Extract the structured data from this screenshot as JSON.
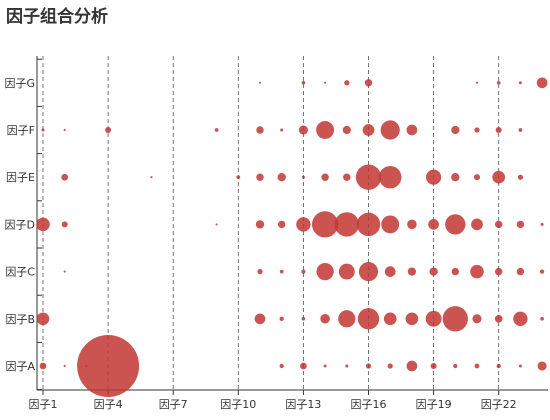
{
  "title": "因子组合分析",
  "chart_data": {
    "type": "scatter",
    "title": "因子组合分析",
    "x_categories": [
      "因子1",
      "因子2",
      "因子3",
      "因子4",
      "因子5",
      "因子6",
      "因子7",
      "因子8",
      "因子9",
      "因子10",
      "因子11",
      "因子12",
      "因子13",
      "因子14",
      "因子15",
      "因子16",
      "因子17",
      "因子18",
      "因子19",
      "因子20",
      "因子21",
      "因子22",
      "因子23",
      "因子24"
    ],
    "x_tick_labels": [
      "因子1",
      "因子4",
      "因子7",
      "因子10",
      "因子13",
      "因子16",
      "因子19",
      "因子22"
    ],
    "y_categories": [
      "因子A",
      "因子B",
      "因子C",
      "因子D",
      "因子E",
      "因子F",
      "因子G"
    ],
    "color": "#c23531",
    "grid": "dashed vertical lines at labeled x ticks",
    "points": [
      {
        "x": "因子1",
        "y": "因子A",
        "v": 1
      },
      {
        "x": "因子2",
        "y": "因子A",
        "v": 0.1
      },
      {
        "x": "因子3",
        "y": "因子A",
        "v": 0.1
      },
      {
        "x": "因子4",
        "y": "因子A",
        "v": 84
      },
      {
        "x": "因子12",
        "y": "因子A",
        "v": 0.4
      },
      {
        "x": "因子13",
        "y": "因子A",
        "v": 1
      },
      {
        "x": "因子14",
        "y": "因子A",
        "v": 0.2
      },
      {
        "x": "因子15",
        "y": "因子A",
        "v": 0.2
      },
      {
        "x": "因子16",
        "y": "因子A",
        "v": 0.6
      },
      {
        "x": "因子17",
        "y": "因子A",
        "v": 0.6
      },
      {
        "x": "因子18",
        "y": "因子A",
        "v": 2.5
      },
      {
        "x": "因子19",
        "y": "因子A",
        "v": 0.8
      },
      {
        "x": "因子20",
        "y": "因子A",
        "v": 0.4
      },
      {
        "x": "因子21",
        "y": "因子A",
        "v": 0.5
      },
      {
        "x": "因子22",
        "y": "因子A",
        "v": 0.4
      },
      {
        "x": "因子23",
        "y": "因子A",
        "v": 0.2
      },
      {
        "x": "因子24",
        "y": "因子A",
        "v": 1.8
      },
      {
        "x": "因子1",
        "y": "因子B",
        "v": 3.5
      },
      {
        "x": "因子11",
        "y": "因子B",
        "v": 2.5
      },
      {
        "x": "因子12",
        "y": "因子B",
        "v": 0.4
      },
      {
        "x": "因子13",
        "y": "因子B",
        "v": 0.3
      },
      {
        "x": "因子14",
        "y": "因子B",
        "v": 2
      },
      {
        "x": "因子15",
        "y": "因子B",
        "v": 6.5
      },
      {
        "x": "因子16",
        "y": "因子B",
        "v": 10
      },
      {
        "x": "因子17",
        "y": "因子B",
        "v": 3.5
      },
      {
        "x": "因子18",
        "y": "因子B",
        "v": 3.5
      },
      {
        "x": "因子19",
        "y": "因子B",
        "v": 5.5
      },
      {
        "x": "因子20",
        "y": "因子B",
        "v": 14
      },
      {
        "x": "因子21",
        "y": "因子B",
        "v": 1.8
      },
      {
        "x": "因子22",
        "y": "因子B",
        "v": 1.3
      },
      {
        "x": "因子23",
        "y": "因子B",
        "v": 4.5
      },
      {
        "x": "因子24",
        "y": "因子B",
        "v": 0.3
      },
      {
        "x": "因子2",
        "y": "因子C",
        "v": 0.1
      },
      {
        "x": "因子11",
        "y": "因子C",
        "v": 0.6
      },
      {
        "x": "因子12",
        "y": "因子C",
        "v": 0.3
      },
      {
        "x": "因子13",
        "y": "因子C",
        "v": 0.4
      },
      {
        "x": "因子14",
        "y": "因子C",
        "v": 6.5
      },
      {
        "x": "因子15",
        "y": "因子C",
        "v": 5.5
      },
      {
        "x": "因子16",
        "y": "因子C",
        "v": 8
      },
      {
        "x": "因子17",
        "y": "因子C",
        "v": 2.5
      },
      {
        "x": "因子18",
        "y": "因子C",
        "v": 1.5
      },
      {
        "x": "因子19",
        "y": "因子C",
        "v": 1.5
      },
      {
        "x": "因子20",
        "y": "因子C",
        "v": 1.2
      },
      {
        "x": "因子21",
        "y": "因子C",
        "v": 4
      },
      {
        "x": "因子22",
        "y": "因子C",
        "v": 1.2
      },
      {
        "x": "因子23",
        "y": "因子C",
        "v": 1.2
      },
      {
        "x": "因子24",
        "y": "因子C",
        "v": 0.4
      },
      {
        "x": "因子1",
        "y": "因子D",
        "v": 4
      },
      {
        "x": "因子2",
        "y": "因子D",
        "v": 0.8
      },
      {
        "x": "因子9",
        "y": "因子D",
        "v": 0.1
      },
      {
        "x": "因子11",
        "y": "因子D",
        "v": 1.5
      },
      {
        "x": "因子12",
        "y": "因子D",
        "v": 1.2
      },
      {
        "x": "因子13",
        "y": "因子D",
        "v": 4.5
      },
      {
        "x": "因子14",
        "y": "因子D",
        "v": 15
      },
      {
        "x": "因子15",
        "y": "因子D",
        "v": 13
      },
      {
        "x": "因子16",
        "y": "因子D",
        "v": 12
      },
      {
        "x": "因子17",
        "y": "因子D",
        "v": 7
      },
      {
        "x": "因子18",
        "y": "因子D",
        "v": 2
      },
      {
        "x": "因子19",
        "y": "因子D",
        "v": 2.5
      },
      {
        "x": "因子20",
        "y": "因子D",
        "v": 9
      },
      {
        "x": "因子21",
        "y": "因子D",
        "v": 3
      },
      {
        "x": "因子22",
        "y": "因子D",
        "v": 1.2
      },
      {
        "x": "因子23",
        "y": "因子D",
        "v": 1.2
      },
      {
        "x": "因子24",
        "y": "因子D",
        "v": 0.2
      },
      {
        "x": "因子2",
        "y": "因子E",
        "v": 1
      },
      {
        "x": "因子6",
        "y": "因子E",
        "v": 0.1
      },
      {
        "x": "因子10",
        "y": "因子E",
        "v": 0.3
      },
      {
        "x": "因子11",
        "y": "因子E",
        "v": 1.2
      },
      {
        "x": "因子12",
        "y": "因子E",
        "v": 1.5
      },
      {
        "x": "因子13",
        "y": "因子E",
        "v": 0.2
      },
      {
        "x": "因子14",
        "y": "因子E",
        "v": 1.2
      },
      {
        "x": "因子15",
        "y": "因子E",
        "v": 1.2
      },
      {
        "x": "因子16",
        "y": "因子E",
        "v": 14
      },
      {
        "x": "因子17",
        "y": "因子E",
        "v": 11
      },
      {
        "x": "因子19",
        "y": "因子E",
        "v": 5
      },
      {
        "x": "因子20",
        "y": "因子E",
        "v": 1.5
      },
      {
        "x": "因子21",
        "y": "因子E",
        "v": 0.8
      },
      {
        "x": "因子22",
        "y": "因子E",
        "v": 3.5
      },
      {
        "x": "因子23",
        "y": "因子E",
        "v": 0.6
      },
      {
        "x": "因子1",
        "y": "因子F",
        "v": 0.2
      },
      {
        "x": "因子2",
        "y": "因子F",
        "v": 0.1
      },
      {
        "x": "因子4",
        "y": "因子F",
        "v": 0.8
      },
      {
        "x": "因子9",
        "y": "因子F",
        "v": 0.3
      },
      {
        "x": "因子11",
        "y": "因子F",
        "v": 1.2
      },
      {
        "x": "因子12",
        "y": "因子F",
        "v": 0.2
      },
      {
        "x": "因子13",
        "y": "因子F",
        "v": 1.8
      },
      {
        "x": "因子14",
        "y": "因子F",
        "v": 7
      },
      {
        "x": "因子15",
        "y": "因子F",
        "v": 1.5
      },
      {
        "x": "因子16",
        "y": "因子F",
        "v": 3
      },
      {
        "x": "因子17",
        "y": "因子F",
        "v": 8
      },
      {
        "x": "因子18",
        "y": "因子F",
        "v": 2.5
      },
      {
        "x": "因子20",
        "y": "因子F",
        "v": 1.5
      },
      {
        "x": "因子21",
        "y": "因子F",
        "v": 0.6
      },
      {
        "x": "因子22",
        "y": "因子F",
        "v": 0.8
      },
      {
        "x": "因子23",
        "y": "因子F",
        "v": 0.3
      },
      {
        "x": "因子11",
        "y": "因子G",
        "v": 0.1
      },
      {
        "x": "因子13",
        "y": "因子G",
        "v": 0.3
      },
      {
        "x": "因子14",
        "y": "因子G",
        "v": 0.1
      },
      {
        "x": "因子15",
        "y": "因子G",
        "v": 0.6
      },
      {
        "x": "因子16",
        "y": "因子G",
        "v": 1.2
      },
      {
        "x": "因子21",
        "y": "因子G",
        "v": 0.1
      },
      {
        "x": "因子22",
        "y": "因子G",
        "v": 0.3
      },
      {
        "x": "因子23",
        "y": "因子G",
        "v": 0.2
      },
      {
        "x": "因子24",
        "y": "因子G",
        "v": 2.5
      }
    ]
  }
}
